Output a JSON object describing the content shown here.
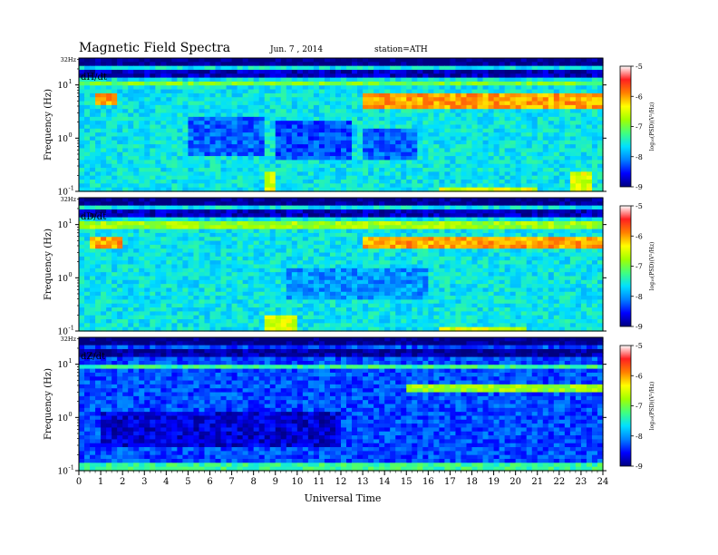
{
  "header": {
    "title": "Magnetic  Field  Spectra",
    "date": "Jun.  7  , 2014",
    "station": "station=ATH"
  },
  "chart_data": {
    "type": "heatmap",
    "xlabel": "Universal Time",
    "xlim": [
      0,
      24
    ],
    "x_ticks": [
      "0",
      "1",
      "2",
      "3",
      "4",
      "5",
      "6",
      "7",
      "8",
      "9",
      "10",
      "11",
      "12",
      "13",
      "14",
      "15",
      "16",
      "17",
      "18",
      "19",
      "20",
      "21",
      "22",
      "23",
      "24"
    ],
    "ylabel": "Frequency  (Hz)",
    "y_scale": "log",
    "ylim": [
      0.1,
      32
    ],
    "y_tick_labels": {
      "top": "32Hz",
      "e1": "10",
      "e0": "10",
      "em1": "10",
      "exp1": "1",
      "exp0": "0",
      "expm1": "-1"
    },
    "colorbar": {
      "label": "log(PSD)(V^2/Hz)",
      "label_display": "log₁₀(PSD)(V²/Hz)",
      "range": [
        -9,
        -5
      ],
      "tick_labels": [
        "-5",
        "-6",
        "-7",
        "-8",
        "-9"
      ],
      "colors": [
        "#000080",
        "#0000ff",
        "#0080ff",
        "#00e0ff",
        "#40ff80",
        "#a0ff00",
        "#ffff00",
        "#ff8000",
        "#ff2020",
        "#ffffff"
      ]
    },
    "panels": [
      {
        "name": "dH/dt",
        "background_level": -7.6,
        "features": [
          {
            "type": "band",
            "t": [
              0,
              24
            ],
            "f": [
              22,
              32
            ],
            "level": -9.0
          },
          {
            "type": "band",
            "t": [
              0,
              24
            ],
            "f": [
              13,
              18
            ],
            "level": -8.8
          },
          {
            "type": "band",
            "t": [
              0,
              24
            ],
            "f": [
              10,
              12
            ],
            "level": -7.0
          },
          {
            "type": "band",
            "t": [
              0.7,
              1.7
            ],
            "f": [
              4,
              6.5
            ],
            "level": -6.0
          },
          {
            "type": "band",
            "t": [
              13,
              24
            ],
            "f": [
              3.5,
              7.5
            ],
            "level": -6.0
          },
          {
            "type": "band",
            "t": [
              5,
              8.5
            ],
            "f": [
              0.5,
              2.5
            ],
            "level": -8.2
          },
          {
            "type": "band",
            "t": [
              9,
              12.5
            ],
            "f": [
              0.4,
              2.0
            ],
            "level": -8.3
          },
          {
            "type": "band",
            "t": [
              13,
              15.5
            ],
            "f": [
              0.4,
              1.5
            ],
            "level": -8.2
          },
          {
            "type": "band",
            "t": [
              8.6,
              9.1
            ],
            "f": [
              0.1,
              0.25
            ],
            "level": -6.5
          },
          {
            "type": "band",
            "t": [
              16.5,
              21
            ],
            "f": [
              0.1,
              0.12
            ],
            "level": -6.5
          },
          {
            "type": "band",
            "t": [
              22.6,
              23.5
            ],
            "f": [
              0.1,
              0.25
            ],
            "level": -6.5
          }
        ]
      },
      {
        "name": "dD/dt",
        "background_level": -7.6,
        "features": [
          {
            "type": "band",
            "t": [
              0,
              24
            ],
            "f": [
              22,
              32
            ],
            "level": -9.0
          },
          {
            "type": "band",
            "t": [
              0,
              24
            ],
            "f": [
              13,
              18
            ],
            "level": -8.8
          },
          {
            "type": "band",
            "t": [
              0,
              24
            ],
            "f": [
              8,
              11
            ],
            "level": -6.8
          },
          {
            "type": "band",
            "t": [
              0.5,
              2.0
            ],
            "f": [
              3.5,
              6
            ],
            "level": -6.0
          },
          {
            "type": "band",
            "t": [
              13,
              24
            ],
            "f": [
              3.5,
              6
            ],
            "level": -6.0
          },
          {
            "type": "band",
            "t": [
              9.5,
              16
            ],
            "f": [
              0.4,
              1.5
            ],
            "level": -8.0
          },
          {
            "type": "band",
            "t": [
              8.6,
              10
            ],
            "f": [
              0.1,
              0.2
            ],
            "level": -6.5
          },
          {
            "type": "band",
            "t": [
              16.5,
              20.5
            ],
            "f": [
              0.1,
              0.12
            ],
            "level": -6.5
          }
        ]
      },
      {
        "name": "dZ/dt",
        "background_level": -8.3,
        "features": [
          {
            "type": "band",
            "t": [
              0,
              24
            ],
            "f": [
              22,
              32
            ],
            "level": -9.0
          },
          {
            "type": "band",
            "t": [
              0,
              24
            ],
            "f": [
              14,
              20
            ],
            "level": -8.9
          },
          {
            "type": "band",
            "t": [
              0,
              24
            ],
            "f": [
              8,
              10
            ],
            "level": -7.3
          },
          {
            "type": "band",
            "t": [
              15,
              24
            ],
            "f": [
              3,
              4.5
            ],
            "level": -6.8
          },
          {
            "type": "band",
            "t": [
              0,
              24
            ],
            "f": [
              0.1,
              0.15
            ],
            "level": -7.3
          },
          {
            "type": "band",
            "t": [
              1,
              12
            ],
            "f": [
              0.3,
              1.2
            ],
            "level": -8.7
          }
        ]
      }
    ]
  }
}
